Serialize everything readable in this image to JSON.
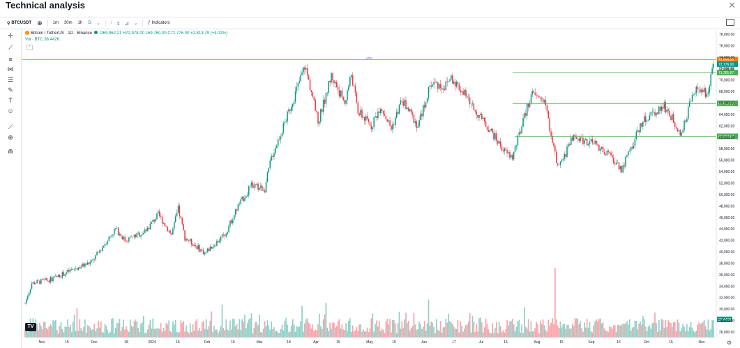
{
  "window": {
    "title": "Technical analysis",
    "close_icon": "close-icon"
  },
  "toolbar": {
    "symbol": "BTCUSDT",
    "intervals": [
      "1m",
      "30m",
      "1h",
      "D"
    ],
    "indicators_label": "Indicators"
  },
  "legend": {
    "line1_name": "Bitcoin / TetherUS · 1D · Binance",
    "ohlc": "O69,962.21 H72,978.00 L69,760.00 C72,776.00 +2,813.79 (+4.02%)",
    "volume": "Vol · BTC  36.442K"
  },
  "chart_data": {
    "type": "candlestick",
    "symbol": "BTCUSDT",
    "x_ticks": [
      "Nov",
      "15",
      "Dec",
      "18",
      "2024",
      "15",
      "Feb",
      "15",
      "Mar",
      "18",
      "Apr",
      "15",
      "May",
      "15",
      "Jun",
      "17",
      "Jul",
      "15",
      "Aug",
      "15",
      "Sep",
      "16",
      "Oct",
      "15",
      "Nov"
    ],
    "y_ticks": [
      "78,000.00",
      "76,000.00",
      "74,000.00",
      "72,000.00",
      "70,000.00",
      "68,000.00",
      "66,000.00",
      "64,000.00",
      "62,000.00",
      "60,000.00",
      "58,000.00",
      "56,000.00",
      "54,000.00",
      "52,000.00",
      "50,000.00",
      "48,000.00",
      "46,000.00",
      "44,000.00",
      "42,000.00",
      "40,000.00",
      "38,000.00",
      "36,000.00",
      "34,000.00",
      "32,000.00",
      "30,000.00",
      "28,000.00",
      "26,000.00"
    ],
    "ylim": [
      25000,
      79000
    ],
    "horizontal_levels": [
      {
        "value": 73559.0,
        "label": "73,559.00",
        "color": "#f57c00",
        "text": "ATH"
      },
      {
        "value": 71291.67,
        "label": "71,291.67",
        "color": "#4caf50"
      },
      {
        "value": 65913.22,
        "label": "65,913.22",
        "color": "#4caf50"
      },
      {
        "value": 60163.67,
        "label": "60,163.67",
        "color": "#4caf50"
      }
    ],
    "last_price": {
      "value": 72776.0,
      "label": "72,776.00",
      "color": "#089981"
    },
    "last_price_shadow_label": "72,000.00",
    "volume_label": "36.442K",
    "anchors": [
      [
        0,
        31000
      ],
      [
        5,
        34500
      ],
      [
        20,
        35200
      ],
      [
        35,
        36800
      ],
      [
        50,
        38200
      ],
      [
        60,
        41500
      ],
      [
        68,
        44000
      ],
      [
        75,
        42000
      ],
      [
        90,
        43500
      ],
      [
        100,
        46500
      ],
      [
        110,
        43000
      ],
      [
        115,
        47500
      ],
      [
        120,
        42500
      ],
      [
        135,
        39800
      ],
      [
        150,
        43000
      ],
      [
        160,
        48000
      ],
      [
        170,
        51500
      ],
      [
        180,
        51000
      ],
      [
        185,
        56500
      ],
      [
        195,
        62500
      ],
      [
        205,
        69000
      ],
      [
        210,
        72500
      ],
      [
        215,
        68000
      ],
      [
        220,
        62500
      ],
      [
        230,
        70800
      ],
      [
        240,
        66000
      ],
      [
        245,
        71000
      ],
      [
        250,
        64500
      ],
      [
        260,
        62000
      ],
      [
        267,
        65500
      ],
      [
        275,
        61500
      ],
      [
        283,
        66500
      ],
      [
        295,
        62000
      ],
      [
        305,
        69500
      ],
      [
        315,
        68800
      ],
      [
        320,
        70500
      ],
      [
        330,
        67500
      ],
      [
        340,
        64000
      ],
      [
        350,
        61000
      ],
      [
        360,
        57500
      ],
      [
        366,
        56500
      ],
      [
        375,
        63500
      ],
      [
        380,
        67500
      ],
      [
        390,
        66500
      ],
      [
        400,
        54500
      ],
      [
        405,
        56500
      ],
      [
        410,
        60000
      ],
      [
        420,
        59500
      ],
      [
        430,
        58500
      ],
      [
        440,
        56500
      ],
      [
        448,
        54500
      ],
      [
        455,
        58000
      ],
      [
        463,
        62500
      ],
      [
        473,
        64500
      ],
      [
        480,
        65500
      ],
      [
        488,
        62500
      ],
      [
        493,
        60500
      ],
      [
        500,
        66500
      ],
      [
        505,
        68500
      ],
      [
        512,
        67500
      ],
      [
        517,
        72776
      ]
    ],
    "bar_count": 518
  }
}
